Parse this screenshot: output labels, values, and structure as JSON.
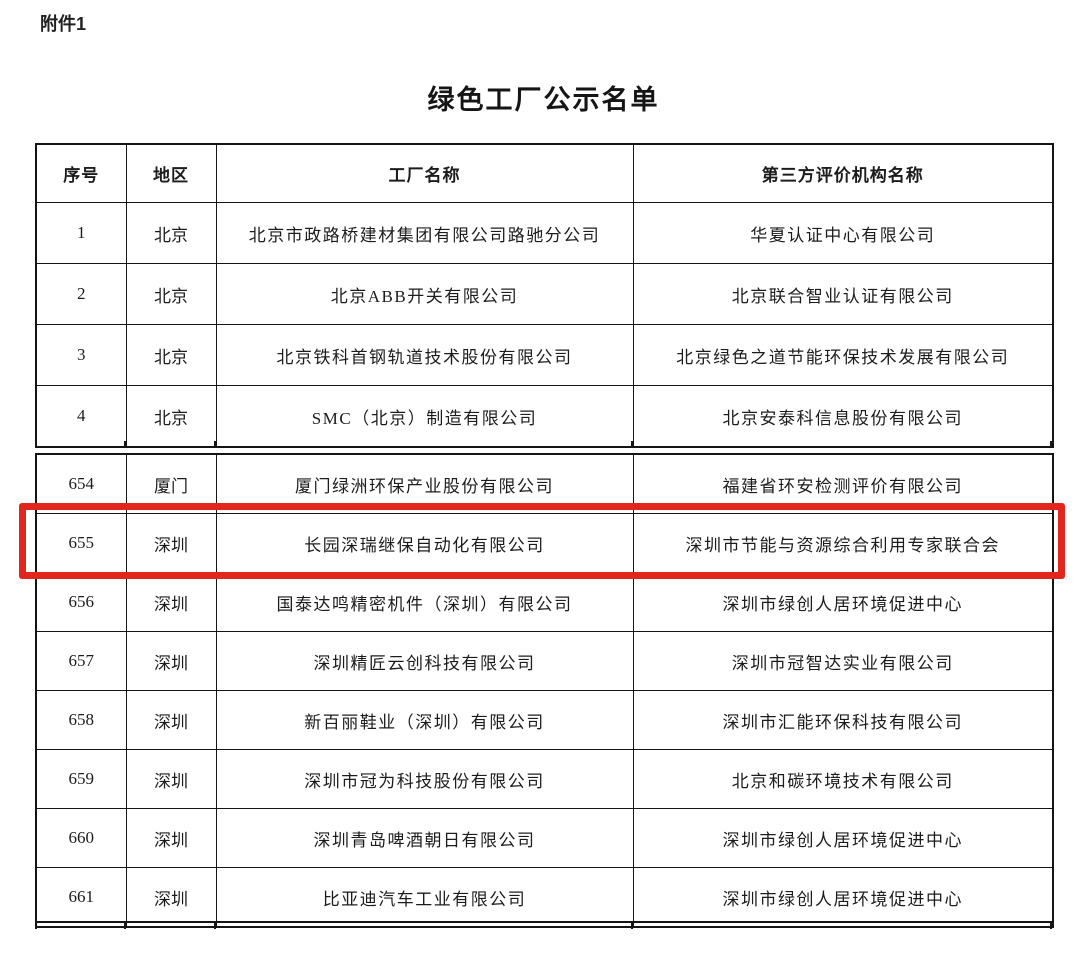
{
  "page": {
    "attachment_label": "附件1",
    "title": "绿色工厂公示名单"
  },
  "table": {
    "headers": [
      "序号",
      "地区",
      "工厂名称",
      "第三方评价机构名称"
    ],
    "section1": [
      {
        "no": "1",
        "region": "北京",
        "factory": "北京市政路桥建材集团有限公司路驰分公司",
        "agency": "华夏认证中心有限公司"
      },
      {
        "no": "2",
        "region": "北京",
        "factory": "北京ABB开关有限公司",
        "agency": "北京联合智业认证有限公司"
      },
      {
        "no": "3",
        "region": "北京",
        "factory": "北京铁科首钢轨道技术股份有限公司",
        "agency": "北京绿色之道节能环保技术发展有限公司"
      },
      {
        "no": "4",
        "region": "北京",
        "factory": "SMC（北京）制造有限公司",
        "agency": "北京安泰科信息股份有限公司"
      }
    ],
    "section2": [
      {
        "no": "654",
        "region": "厦门",
        "factory": "厦门绿洲环保产业股份有限公司",
        "agency": "福建省环安检测评价有限公司",
        "highlighted": false
      },
      {
        "no": "655",
        "region": "深圳",
        "factory": "长园深瑞继保自动化有限公司",
        "agency": "深圳市节能与资源综合利用专家联合会",
        "highlighted": true
      },
      {
        "no": "656",
        "region": "深圳",
        "factory": "国泰达鸣精密机件（深圳）有限公司",
        "agency": "深圳市绿创人居环境促进中心",
        "highlighted": false
      },
      {
        "no": "657",
        "region": "深圳",
        "factory": "深圳精匠云创科技有限公司",
        "agency": "深圳市冠智达实业有限公司",
        "highlighted": false
      },
      {
        "no": "658",
        "region": "深圳",
        "factory": "新百丽鞋业（深圳）有限公司",
        "agency": "深圳市汇能环保科技有限公司",
        "highlighted": false
      },
      {
        "no": "659",
        "region": "深圳",
        "factory": "深圳市冠为科技股份有限公司",
        "agency": "北京和碳环境技术有限公司",
        "highlighted": false
      },
      {
        "no": "660",
        "region": "深圳",
        "factory": "深圳青岛啤酒朝日有限公司",
        "agency": "深圳市绿创人居环境促进中心",
        "highlighted": false
      },
      {
        "no": "661",
        "region": "深圳",
        "factory": "比亚迪汽车工业有限公司",
        "agency": "深圳市绿创人居环境促进中心",
        "highlighted": false
      }
    ]
  },
  "colors": {
    "highlight_border": "#e0261d",
    "table_border": "#151515",
    "text": "#1c1c1c"
  }
}
